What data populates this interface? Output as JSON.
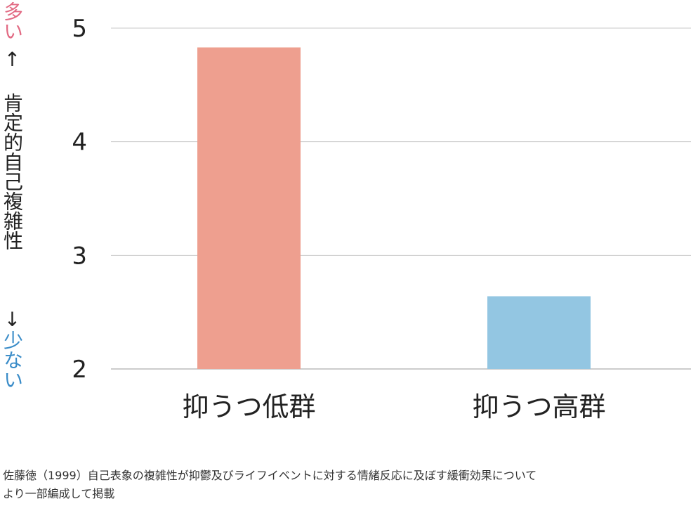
{
  "y_axis_label": {
    "more": "多い",
    "arrow_up": "↑",
    "label": "肯定的自己複雑性",
    "arrow_down": "↓",
    "less": "少ない"
  },
  "caption": {
    "line1": "佐藤徳（1999）自己表象の複雑性が抑鬱及びライフイベントに対する情緒反応に及ぼす緩衝効果について",
    "line2": "より一部編成して掲載"
  },
  "chart_data": {
    "type": "bar",
    "categories": [
      "抑うつ低群",
      "抑うつ高群"
    ],
    "values": [
      4.83,
      2.64
    ],
    "colors": [
      "#ee9f8f",
      "#93c6e2"
    ],
    "ylim": [
      2,
      5
    ],
    "yticks": [
      2,
      3,
      4,
      5
    ],
    "grid": true
  }
}
